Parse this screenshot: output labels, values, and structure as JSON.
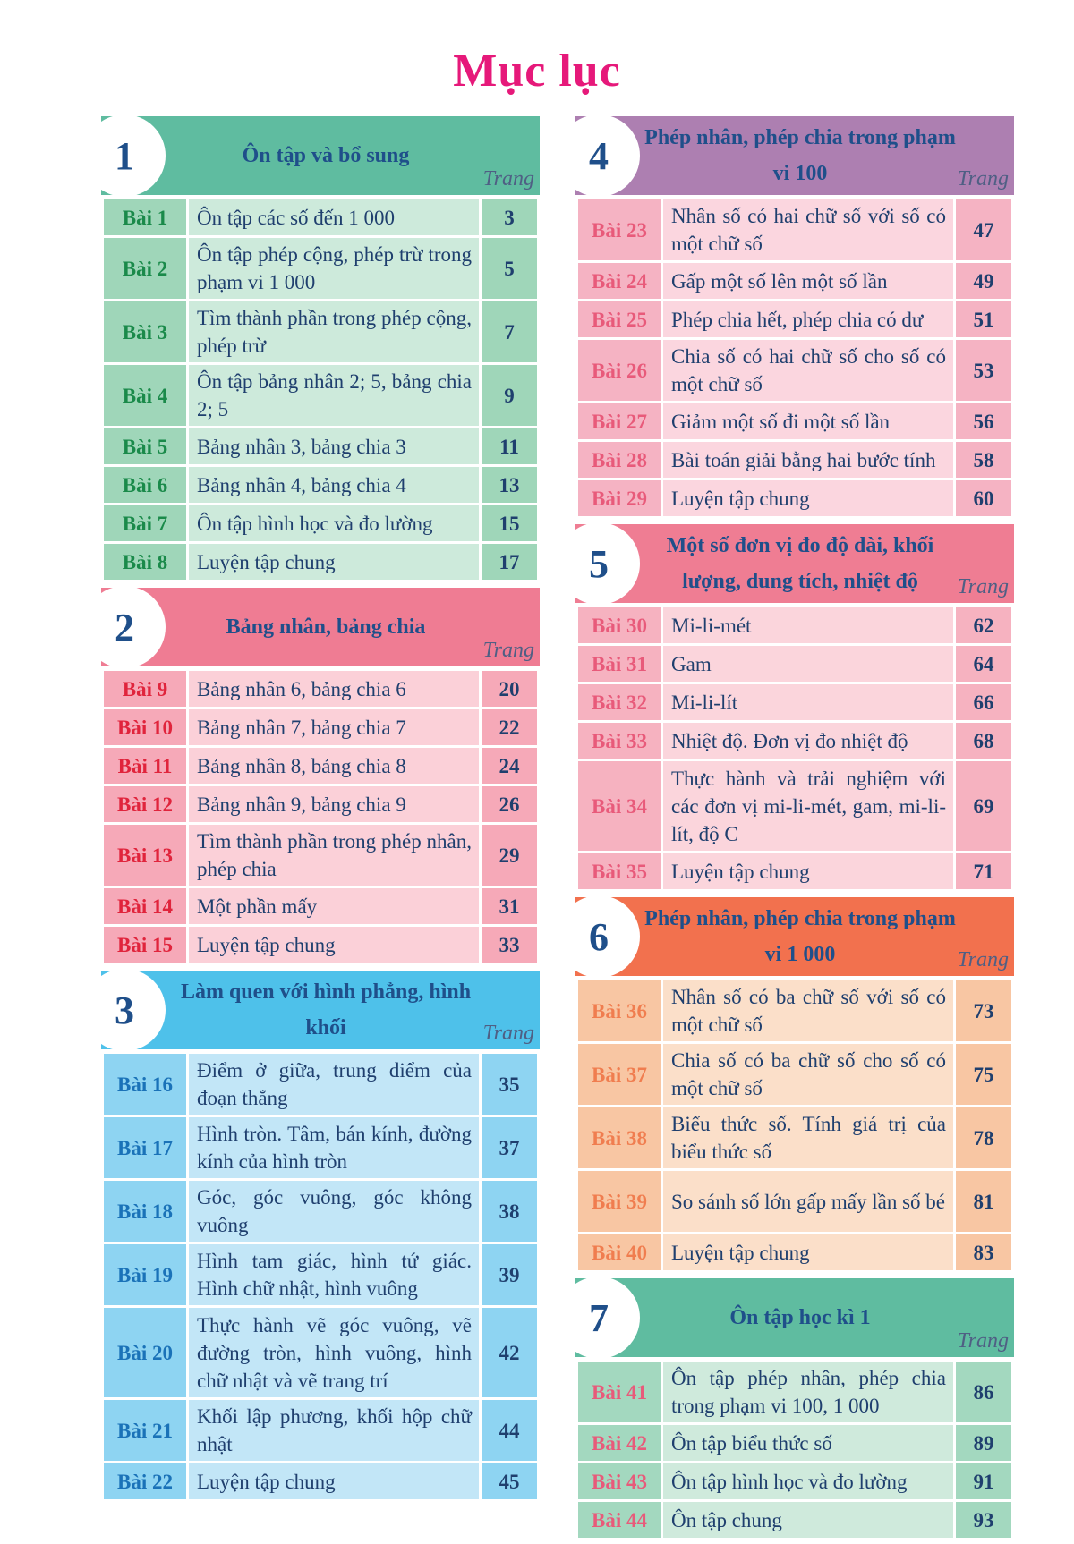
{
  "page_title": "Mục lục",
  "page_label": "Trang",
  "chapters": [
    {
      "number": "1",
      "title": "Ôn tập và bổ sung",
      "colors": {
        "bar": "#5fbca0",
        "num_bg": "#9fd6b9",
        "row_bg": "#cdeadb",
        "num_text": "#1a8a4a"
      },
      "lessons": [
        {
          "num": "Bài 1",
          "title": "Ôn tập các số đến 1 000",
          "page": "3"
        },
        {
          "num": "Bài 2",
          "title": "Ôn tập phép cộng, phép trừ trong phạm vi 1 000",
          "page": "5"
        },
        {
          "num": "Bài 3",
          "title": "Tìm thành phần trong phép cộng, phép trừ",
          "page": "7"
        },
        {
          "num": "Bài 4",
          "title": "Ôn tập bảng nhân 2; 5, bảng chia 2; 5",
          "page": "9"
        },
        {
          "num": "Bài 5",
          "title": "Bảng nhân 3, bảng chia 3",
          "page": "11"
        },
        {
          "num": "Bài 6",
          "title": "Bảng nhân 4, bảng chia 4",
          "page": "13"
        },
        {
          "num": "Bài 7",
          "title": "Ôn tập hình học và đo lường",
          "page": "15"
        },
        {
          "num": "Bài 8",
          "title": "Luyện tập chung",
          "page": "17"
        }
      ]
    },
    {
      "number": "2",
      "title": "Bảng nhân, bảng chia",
      "colors": {
        "bar": "#ef7c93",
        "num_bg": "#f6a9b8",
        "row_bg": "#fbd0d8",
        "num_text": "#e0243c"
      },
      "lessons": [
        {
          "num": "Bài 9",
          "title": "Bảng nhân 6, bảng chia 6",
          "page": "20"
        },
        {
          "num": "Bài 10",
          "title": "Bảng nhân 7, bảng chia 7",
          "page": "22"
        },
        {
          "num": "Bài 11",
          "title": "Bảng nhân 8, bảng chia 8",
          "page": "24"
        },
        {
          "num": "Bài 12",
          "title": "Bảng nhân 9, bảng chia 9",
          "page": "26"
        },
        {
          "num": "Bài 13",
          "title": "Tìm thành phần trong phép nhân, phép chia",
          "page": "29"
        },
        {
          "num": "Bài 14",
          "title": "Một phần mấy",
          "page": "31"
        },
        {
          "num": "Bài 15",
          "title": "Luyện tập chung",
          "page": "33"
        }
      ]
    },
    {
      "number": "3",
      "title": "Làm quen với hình phẳng, hình khối",
      "colors": {
        "bar": "#4ec1ea",
        "num_bg": "#8ed4f2",
        "row_bg": "#c2e6f7",
        "num_text": "#1a72b8"
      },
      "lessons": [
        {
          "num": "Bài 16",
          "title": "Điểm ở giữa, trung điểm của đoạn thẳng",
          "page": "35"
        },
        {
          "num": "Bài 17",
          "title": "Hình tròn. Tâm, bán kính, đường kính của hình tròn",
          "page": "37"
        },
        {
          "num": "Bài 18",
          "title": "Góc, góc vuông, góc không vuông",
          "page": "38"
        },
        {
          "num": "Bài 19",
          "title": "Hình tam giác, hình tứ giác. Hình chữ nhật, hình vuông",
          "page": "39"
        },
        {
          "num": "Bài 20",
          "title": "Thực hành vẽ góc vuông, vẽ đường tròn, hình vuông, hình chữ nhật và vẽ trang trí",
          "page": "42"
        },
        {
          "num": "Bài 21",
          "title": "Khối lập phương, khối hộp chữ nhật",
          "page": "44"
        },
        {
          "num": "Bài 22",
          "title": "Luyện tập chung",
          "page": "45"
        }
      ]
    },
    {
      "number": "4",
      "title": "Phép nhân, phép chia trong phạm vi 100",
      "colors": {
        "bar": "#ad7fb1",
        "num_bg": "#f5b3c3",
        "row_bg": "#fbd6df",
        "num_text": "#e85a7a"
      },
      "lessons": [
        {
          "num": "Bài 23",
          "title": "Nhân số có hai chữ số với số có một chữ số",
          "page": "47"
        },
        {
          "num": "Bài 24",
          "title": "Gấp một số lên một số lần",
          "page": "49"
        },
        {
          "num": "Bài 25",
          "title": "Phép chia hết, phép chia có dư",
          "page": "51"
        },
        {
          "num": "Bài 26",
          "title": "Chia số có hai chữ số cho số có một chữ số",
          "page": "53"
        },
        {
          "num": "Bài 27",
          "title": "Giảm một số đi một số lần",
          "page": "56"
        },
        {
          "num": "Bài 28",
          "title": "Bài toán giải bằng hai bước tính",
          "page": "58"
        },
        {
          "num": "Bài 29",
          "title": "Luyện tập chung",
          "page": "60"
        }
      ]
    },
    {
      "number": "5",
      "title": "Một số đơn vị đo độ dài, khối lượng, dung tích, nhiệt độ",
      "colors": {
        "bar": "#ef7d93",
        "num_bg": "#f6b2c0",
        "row_bg": "#fbd5dc",
        "num_text": "#e85a7a"
      },
      "lessons": [
        {
          "num": "Bài 30",
          "title": "Mi-li-mét",
          "page": "62"
        },
        {
          "num": "Bài 31",
          "title": "Gam",
          "page": "64"
        },
        {
          "num": "Bài 32",
          "title": "Mi-li-lít",
          "page": "66"
        },
        {
          "num": "Bài 33",
          "title": "Nhiệt độ. Đơn vị đo nhiệt độ",
          "page": "68"
        },
        {
          "num": "Bài 34",
          "title": "Thực hành và trải nghiệm với các đơn vị mi-li-mét, gam, mi-li-lít, độ C",
          "page": "69"
        },
        {
          "num": "Bài 35",
          "title": "Luyện tập chung",
          "page": "71"
        }
      ]
    },
    {
      "number": "6",
      "title": "Phép nhân, phép chia trong phạm vi 1 000",
      "colors": {
        "bar": "#f2714e",
        "num_bg": "#f8c6a3",
        "row_bg": "#fbdfc9",
        "num_text": "#f07d4f"
      },
      "lessons": [
        {
          "num": "Bài 36",
          "title": "Nhân số có ba chữ số với số có một chữ số",
          "page": "73"
        },
        {
          "num": "Bài 37",
          "title": "Chia số có ba chữ số cho số có một chữ số",
          "page": "75"
        },
        {
          "num": "Bài 38",
          "title": "Biểu thức số. Tính giá trị của biểu thức số",
          "page": "78"
        },
        {
          "num": "Bài 39",
          "title": "So sánh số lớn gấp mấy lần số bé",
          "page": "81"
        },
        {
          "num": "Bài 40",
          "title": "Luyện tập chung",
          "page": "83"
        }
      ]
    },
    {
      "number": "7",
      "title": "Ôn tập học kì 1",
      "colors": {
        "bar": "#5fbca0",
        "num_bg": "#a3d8bf",
        "row_bg": "#cfeadc",
        "num_text": "#e85a7a"
      },
      "lessons": [
        {
          "num": "Bài 41",
          "title": "Ôn tập phép nhân, phép chia trong phạm vi 100, 1 000",
          "page": "86"
        },
        {
          "num": "Bài 42",
          "title": "Ôn tập biểu thức số",
          "page": "89"
        },
        {
          "num": "Bài 43",
          "title": "Ôn tập hình học và đo lường",
          "page": "91"
        },
        {
          "num": "Bài 44",
          "title": "Ôn tập chung",
          "page": "93"
        }
      ]
    }
  ]
}
